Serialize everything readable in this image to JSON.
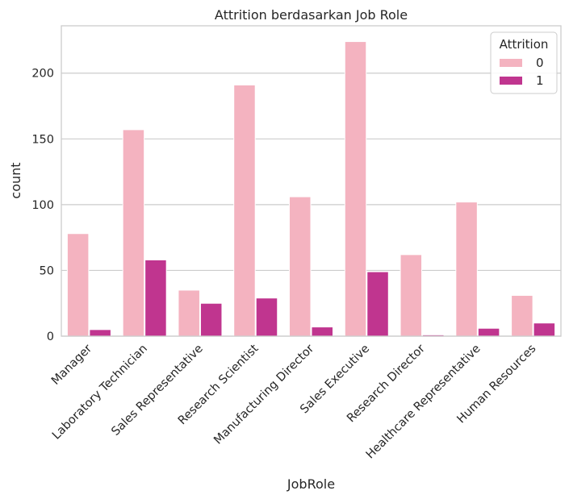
{
  "chart_data": {
    "type": "bar",
    "title": "Attrition berdasarkan Job Role",
    "xlabel": "JobRole",
    "ylabel": "count",
    "categories": [
      "Manager",
      "Laboratory Technician",
      "Sales Representative",
      "Research Scientist",
      "Manufacturing Director",
      "Sales Executive",
      "Research Director",
      "Healthcare Representative",
      "Human Resources"
    ],
    "series": [
      {
        "name": "0",
        "values": [
          78,
          157,
          35,
          191,
          106,
          224,
          62,
          102,
          31
        ]
      },
      {
        "name": "1",
        "values": [
          5,
          58,
          25,
          29,
          7,
          49,
          1,
          6,
          10
        ]
      }
    ],
    "ylim": [
      0,
      236
    ],
    "yticks": [
      0,
      50,
      100,
      150,
      200
    ],
    "legend": {
      "title": "Attrition",
      "placement": "top-right"
    },
    "grid": "y",
    "colors": {
      "series0": "#f4b3c0",
      "series1": "#c0358f",
      "grid": "#cccccc",
      "axis": "#cccccc",
      "text": "#262626"
    }
  }
}
